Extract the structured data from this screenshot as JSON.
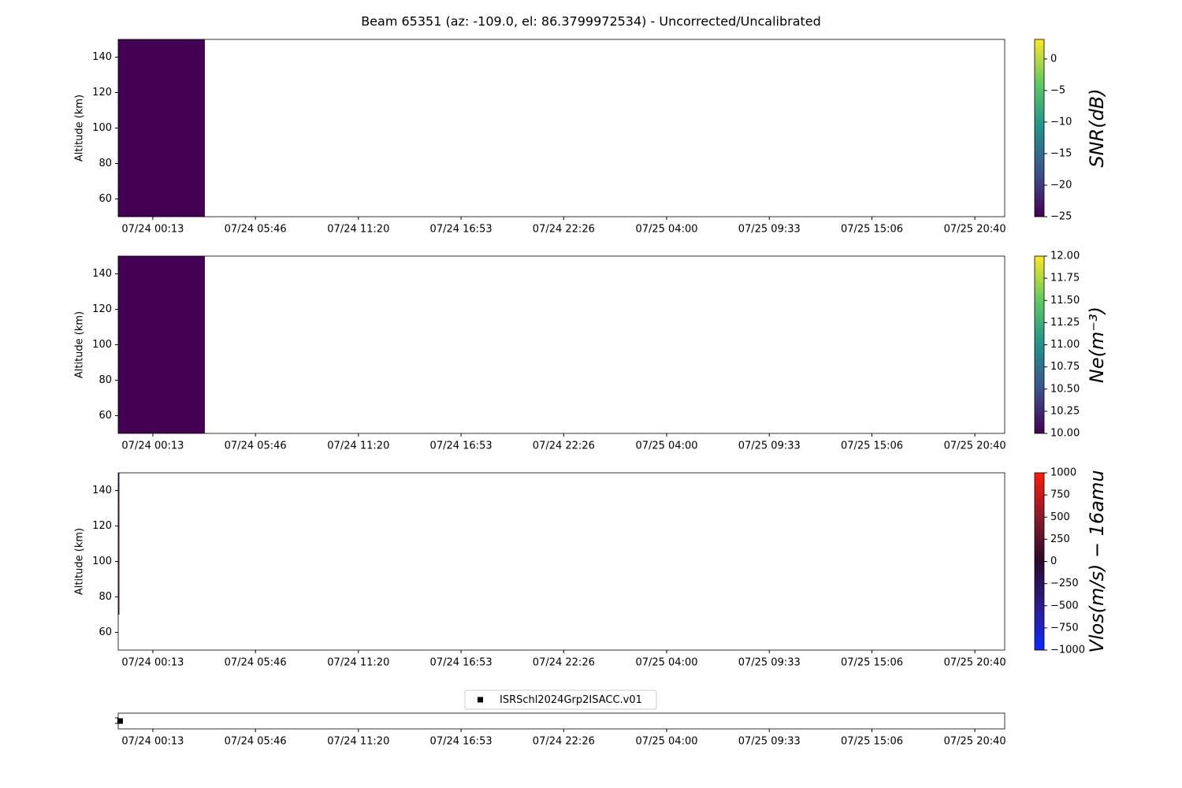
{
  "title": "Beam 65351 (az: -109.0, el: 86.3799972534) - Uncorrected/Uncalibrated",
  "chart_data": [
    {
      "type": "heatmap",
      "ylabel": "Altitude (km)",
      "ylim": [
        50,
        150
      ],
      "yticks": [
        60,
        80,
        100,
        120,
        140
      ],
      "xlim": [
        -1.655,
        46.28
      ],
      "xticks": [
        {
          "value": 0.2167,
          "label": "07/24 00:13"
        },
        {
          "value": 5.7667,
          "label": "07/24 05:46"
        },
        {
          "value": 11.3333,
          "label": "07/24 11:20"
        },
        {
          "value": 16.8833,
          "label": "07/24 16:53"
        },
        {
          "value": 22.4333,
          "label": "07/24 22:26"
        },
        {
          "value": 28,
          "label": "07/25 04:00"
        },
        {
          "value": 33.55,
          "label": "07/25 09:33"
        },
        {
          "value": 39.1,
          "label": "07/25 15:06"
        },
        {
          "value": 44.6667,
          "label": "07/25 20:40"
        }
      ],
      "colormap": "viridis",
      "clim": [
        -25,
        3.1
      ],
      "colorbar_label": "SNR(dB)",
      "cticks": [
        {
          "value": -25,
          "label": "−25"
        },
        {
          "value": -20,
          "label": "−20"
        },
        {
          "value": -15,
          "label": "−15"
        },
        {
          "value": -10,
          "label": "−10"
        },
        {
          "value": -5,
          "label": "−5"
        },
        0
      ],
      "cells": [
        {
          "x": [
            -1.655,
            3.03
          ],
          "y": [
            50,
            150
          ],
          "value": -25
        }
      ]
    },
    {
      "type": "heatmap",
      "ylabel": "Altitude (km)",
      "ylim": [
        50,
        150
      ],
      "yticks": [
        60,
        80,
        100,
        120,
        140
      ],
      "xlim": [
        -1.655,
        46.28
      ],
      "xticks": [
        {
          "value": 0.2167,
          "label": "07/24 00:13"
        },
        {
          "value": 5.7667,
          "label": "07/24 05:46"
        },
        {
          "value": 11.3333,
          "label": "07/24 11:20"
        },
        {
          "value": 16.8833,
          "label": "07/24 16:53"
        },
        {
          "value": 22.4333,
          "label": "07/24 22:26"
        },
        {
          "value": 28,
          "label": "07/25 04:00"
        },
        {
          "value": 33.55,
          "label": "07/25 09:33"
        },
        {
          "value": 39.1,
          "label": "07/25 15:06"
        },
        {
          "value": 44.6667,
          "label": "07/25 20:40"
        }
      ],
      "colormap": "viridis",
      "clim": [
        10,
        12
      ],
      "colorbar_label": "Ne(m⁻³)",
      "cticks": [
        {
          "value": 10,
          "label": "10.00"
        },
        {
          "value": 10.25,
          "label": "10.25"
        },
        {
          "value": 10.5,
          "label": "10.50"
        },
        {
          "value": 10.75,
          "label": "10.75"
        },
        {
          "value": 11,
          "label": "11.00"
        },
        {
          "value": 11.25,
          "label": "11.25"
        },
        {
          "value": 11.5,
          "label": "11.50"
        },
        {
          "value": 11.75,
          "label": "11.75"
        },
        {
          "value": 12,
          "label": "12.00"
        }
      ],
      "cells": [
        {
          "x": [
            -1.655,
            3.03
          ],
          "y": [
            50,
            150
          ],
          "value": 10
        }
      ]
    },
    {
      "type": "heatmap",
      "ylabel": "Altitude (km)",
      "ylim": [
        50,
        150
      ],
      "yticks": [
        60,
        80,
        100,
        120,
        140
      ],
      "xlim": [
        -1.655,
        46.28
      ],
      "xticks": [
        {
          "value": 0.2167,
          "label": "07/24 00:13"
        },
        {
          "value": 5.7667,
          "label": "07/24 05:46"
        },
        {
          "value": 11.3333,
          "label": "07/24 11:20"
        },
        {
          "value": 16.8833,
          "label": "07/24 16:53"
        },
        {
          "value": 22.4333,
          "label": "07/24 22:26"
        },
        {
          "value": 28,
          "label": "07/25 04:00"
        },
        {
          "value": 33.55,
          "label": "07/25 09:33"
        },
        {
          "value": 39.1,
          "label": "07/25 15:06"
        },
        {
          "value": 44.6667,
          "label": "07/25 20:40"
        }
      ],
      "colormap": "bwr",
      "clim": [
        -1000,
        1000
      ],
      "colorbar_label": "Vlos(m/s) − 16amu",
      "cticks": [
        {
          "value": -1000,
          "label": "−1000"
        },
        {
          "value": -750,
          "label": "−750"
        },
        {
          "value": -500,
          "label": "−500"
        },
        {
          "value": -250,
          "label": "−250"
        },
        0,
        250,
        500,
        750,
        1000
      ],
      "cells": [
        {
          "x": [
            -1.655,
            -1.6
          ],
          "y": [
            70,
            145
          ],
          "value": 200
        },
        {
          "x": [
            -1.655,
            -1.6
          ],
          "y": [
            145,
            150
          ],
          "value": -500
        }
      ]
    },
    {
      "type": "scatter",
      "ylim": [
        0,
        1
      ],
      "xlim": [
        -1.655,
        46.28
      ],
      "xticks": [
        {
          "value": 0.2167,
          "label": "07/24 00:13"
        },
        {
          "value": 5.7667,
          "label": "07/24 05:46"
        },
        {
          "value": 11.3333,
          "label": "07/24 11:20"
        },
        {
          "value": 16.8833,
          "label": "07/24 16:53"
        },
        {
          "value": 22.4333,
          "label": "07/24 22:26"
        },
        {
          "value": 28,
          "label": "07/25 04:00"
        },
        {
          "value": 33.55,
          "label": "07/25 09:33"
        },
        {
          "value": 39.1,
          "label": "07/25 15:06"
        },
        {
          "value": 44.6667,
          "label": "07/25 20:40"
        }
      ],
      "legend": "upper center",
      "series": [
        {
          "name": "ISRSchl2024Grp2ISACC.v01",
          "color": "#000000",
          "x": [
            -1.55
          ],
          "values": [
            0.5
          ]
        }
      ]
    }
  ]
}
